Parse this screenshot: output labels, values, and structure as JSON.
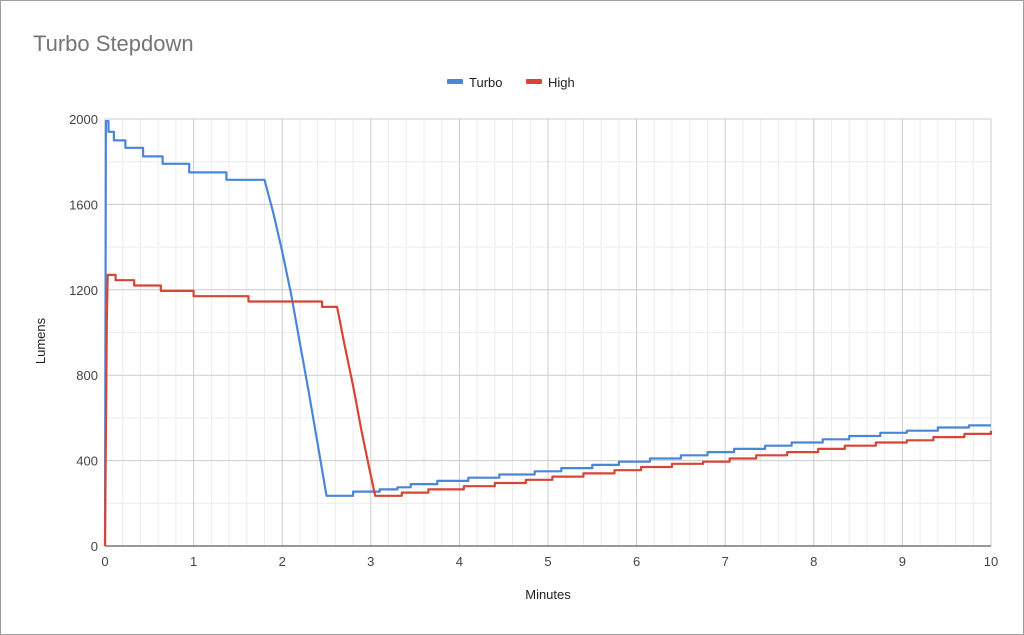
{
  "chart_data": {
    "type": "line",
    "title": "Turbo Stepdown",
    "xlabel": "Minutes",
    "ylabel": "Lumens",
    "xlim": [
      0,
      10
    ],
    "ylim": [
      0,
      2000
    ],
    "x_ticks": [
      "0",
      "1",
      "2",
      "3",
      "4",
      "5",
      "6",
      "7",
      "8",
      "9",
      "10"
    ],
    "y_ticks": [
      "0",
      "400",
      "800",
      "1200",
      "1600",
      "2000"
    ],
    "grid": true,
    "legend_position": "top",
    "series": [
      {
        "name": "Turbo",
        "color": "#4a86d8",
        "points": [
          [
            0,
            0
          ],
          [
            0.01,
            1990
          ],
          [
            0.04,
            1990
          ],
          [
            0.04,
            1940
          ],
          [
            0.1,
            1940
          ],
          [
            0.1,
            1900
          ],
          [
            0.23,
            1900
          ],
          [
            0.23,
            1865
          ],
          [
            0.43,
            1865
          ],
          [
            0.43,
            1825
          ],
          [
            0.65,
            1825
          ],
          [
            0.65,
            1790
          ],
          [
            0.95,
            1790
          ],
          [
            0.95,
            1750
          ],
          [
            1.37,
            1750
          ],
          [
            1.37,
            1715
          ],
          [
            1.8,
            1715
          ],
          [
            1.9,
            1560
          ],
          [
            2.0,
            1380
          ],
          [
            2.1,
            1180
          ],
          [
            2.2,
            950
          ],
          [
            2.3,
            720
          ],
          [
            2.4,
            480
          ],
          [
            2.5,
            235
          ],
          [
            2.8,
            235
          ],
          [
            2.8,
            255
          ],
          [
            3.1,
            255
          ],
          [
            3.1,
            265
          ],
          [
            3.3,
            265
          ],
          [
            3.3,
            275
          ],
          [
            3.45,
            275
          ],
          [
            3.45,
            290
          ],
          [
            3.75,
            290
          ],
          [
            3.75,
            305
          ],
          [
            4.1,
            305
          ],
          [
            4.1,
            320
          ],
          [
            4.45,
            320
          ],
          [
            4.45,
            335
          ],
          [
            4.85,
            335
          ],
          [
            4.85,
            350
          ],
          [
            5.15,
            350
          ],
          [
            5.15,
            365
          ],
          [
            5.5,
            365
          ],
          [
            5.5,
            380
          ],
          [
            5.8,
            380
          ],
          [
            5.8,
            395
          ],
          [
            6.15,
            395
          ],
          [
            6.15,
            410
          ],
          [
            6.5,
            410
          ],
          [
            6.5,
            425
          ],
          [
            6.8,
            425
          ],
          [
            6.8,
            440
          ],
          [
            7.1,
            440
          ],
          [
            7.1,
            455
          ],
          [
            7.45,
            455
          ],
          [
            7.45,
            470
          ],
          [
            7.75,
            470
          ],
          [
            7.75,
            485
          ],
          [
            8.1,
            485
          ],
          [
            8.1,
            500
          ],
          [
            8.4,
            500
          ],
          [
            8.4,
            515
          ],
          [
            8.75,
            515
          ],
          [
            8.75,
            530
          ],
          [
            9.05,
            530
          ],
          [
            9.05,
            540
          ],
          [
            9.4,
            540
          ],
          [
            9.4,
            555
          ],
          [
            9.75,
            555
          ],
          [
            9.75,
            565
          ],
          [
            10,
            565
          ]
        ]
      },
      {
        "name": "High",
        "color": "#d64535",
        "points": [
          [
            0,
            0
          ],
          [
            0.02,
            1050
          ],
          [
            0.03,
            1270
          ],
          [
            0.12,
            1270
          ],
          [
            0.12,
            1245
          ],
          [
            0.33,
            1245
          ],
          [
            0.33,
            1220
          ],
          [
            0.63,
            1220
          ],
          [
            0.63,
            1195
          ],
          [
            1.0,
            1195
          ],
          [
            1.0,
            1170
          ],
          [
            1.62,
            1170
          ],
          [
            1.62,
            1145
          ],
          [
            2.45,
            1145
          ],
          [
            2.45,
            1120
          ],
          [
            2.62,
            1120
          ],
          [
            2.7,
            950
          ],
          [
            2.8,
            750
          ],
          [
            2.9,
            530
          ],
          [
            3.0,
            330
          ],
          [
            3.05,
            235
          ],
          [
            3.35,
            235
          ],
          [
            3.35,
            250
          ],
          [
            3.65,
            250
          ],
          [
            3.65,
            265
          ],
          [
            4.05,
            265
          ],
          [
            4.05,
            280
          ],
          [
            4.4,
            280
          ],
          [
            4.4,
            295
          ],
          [
            4.75,
            295
          ],
          [
            4.75,
            310
          ],
          [
            5.05,
            310
          ],
          [
            5.05,
            325
          ],
          [
            5.4,
            325
          ],
          [
            5.4,
            340
          ],
          [
            5.75,
            340
          ],
          [
            5.75,
            355
          ],
          [
            6.05,
            355
          ],
          [
            6.05,
            370
          ],
          [
            6.4,
            370
          ],
          [
            6.4,
            385
          ],
          [
            6.75,
            385
          ],
          [
            6.75,
            395
          ],
          [
            7.05,
            395
          ],
          [
            7.05,
            410
          ],
          [
            7.35,
            410
          ],
          [
            7.35,
            425
          ],
          [
            7.7,
            425
          ],
          [
            7.7,
            440
          ],
          [
            8.05,
            440
          ],
          [
            8.05,
            455
          ],
          [
            8.35,
            455
          ],
          [
            8.35,
            470
          ],
          [
            8.7,
            470
          ],
          [
            8.7,
            485
          ],
          [
            9.05,
            485
          ],
          [
            9.05,
            495
          ],
          [
            9.35,
            495
          ],
          [
            9.35,
            510
          ],
          [
            9.7,
            510
          ],
          [
            9.7,
            525
          ],
          [
            10,
            525
          ],
          [
            10,
            540
          ]
        ]
      }
    ]
  }
}
